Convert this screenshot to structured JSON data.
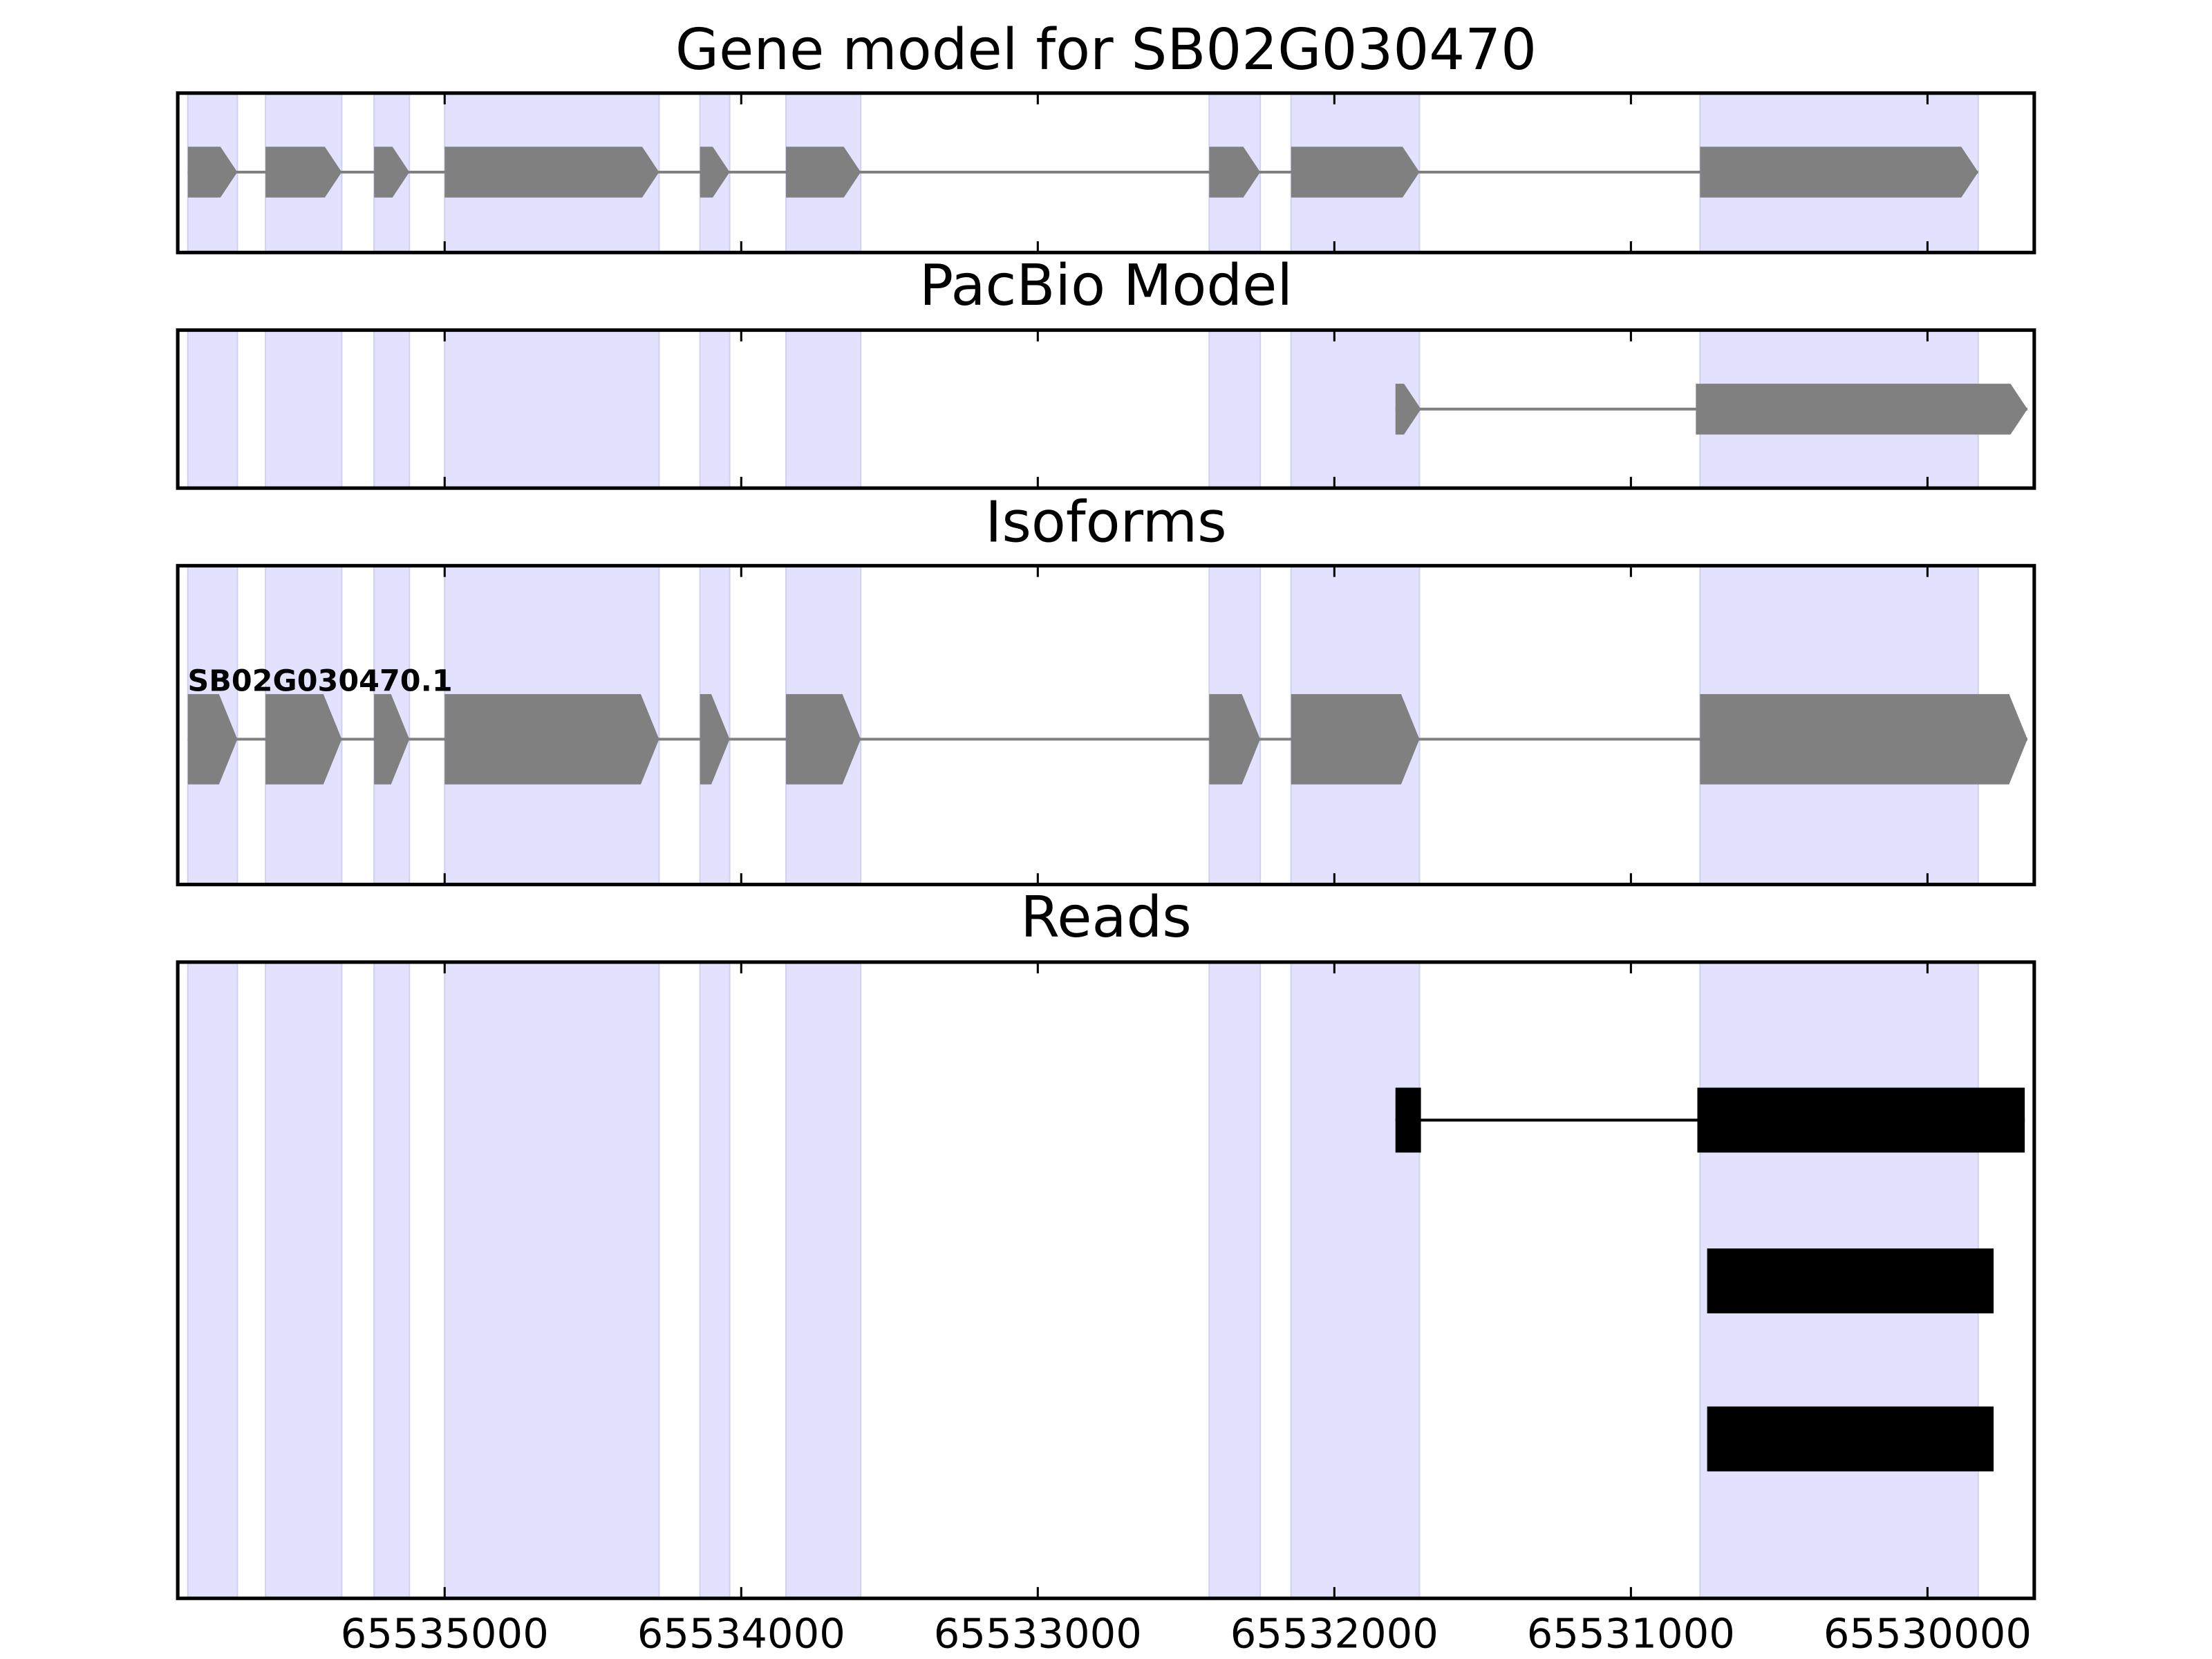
{
  "chart_data": [
    {
      "type": "gene",
      "title": "Gene model for SB02G030470",
      "color": "#808080",
      "shade_color": "#e2e2ff",
      "exons": [
        [
          65535866,
          65535699
        ],
        [
          65535604,
          65535347
        ],
        [
          65535238,
          65535119
        ],
        [
          65535000,
          65534277
        ],
        [
          65534139,
          65534039
        ],
        [
          65533849,
          65533597
        ],
        [
          65532422,
          65532250
        ],
        [
          65532146,
          65531713
        ],
        [
          65530767,
          65529829
        ]
      ]
    },
    {
      "type": "gene",
      "title": "PacBio Model",
      "color": "#808080",
      "exons": [
        [
          65531794,
          65531708
        ],
        [
          65530781,
          65529663
        ]
      ]
    },
    {
      "type": "gene",
      "title": "Isoforms",
      "color": "#808080",
      "label": "SB02G030470.1",
      "exons": [
        [
          65535866,
          65535699
        ],
        [
          65535604,
          65535347
        ],
        [
          65535238,
          65535119
        ],
        [
          65535000,
          65534277
        ],
        [
          65534139,
          65534039
        ],
        [
          65533849,
          65533597
        ],
        [
          65532422,
          65532250
        ],
        [
          65532146,
          65531713
        ],
        [
          65530767,
          65529663
        ]
      ]
    },
    {
      "type": "reads",
      "title": "Reads",
      "color": "#000000",
      "reads": [
        [
          [
            65531794,
            65531708
          ],
          [
            65530776,
            65529672
          ]
        ],
        [
          [
            65530743,
            65529777
          ]
        ],
        [
          [
            65530743,
            65529777
          ]
        ]
      ],
      "xlim": [
        65535900,
        65529640
      ],
      "xticks": [
        65535000,
        65534000,
        65533000,
        65532000,
        65531000,
        65530000
      ]
    }
  ]
}
